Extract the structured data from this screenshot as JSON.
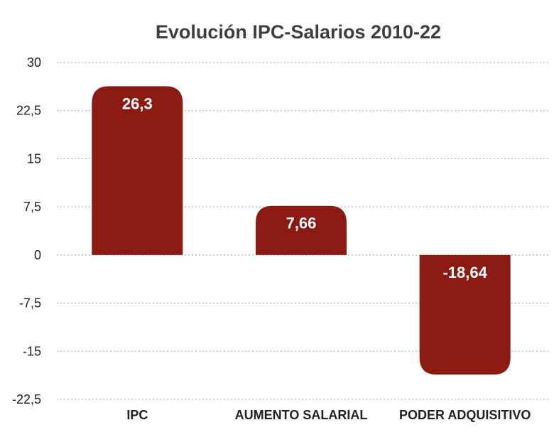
{
  "chart_data": {
    "type": "bar",
    "title": "Evolución IPC-Salarios 2010-22",
    "categories": [
      "IPC",
      "AUMENTO SALARIAL",
      "PODER ADQUISITIVO"
    ],
    "values": [
      26.3,
      7.66,
      -18.64
    ],
    "data_labels": [
      "26,3",
      "7,66",
      "-18,64"
    ],
    "ylim": [
      -22.5,
      30
    ],
    "yticks": [
      30,
      22.5,
      15,
      7.5,
      0,
      -7.5,
      -15,
      -22.5
    ],
    "ytick_labels": [
      "30",
      "22,5",
      "15",
      "7,5",
      "0",
      "-7,5",
      "-15",
      "-22,5"
    ],
    "grid": true,
    "legend": "none",
    "colors": {
      "bar": "#8b1a13",
      "label": "#ffffff",
      "title": "#3f3f3f",
      "grid": "#a8a8a8"
    }
  }
}
